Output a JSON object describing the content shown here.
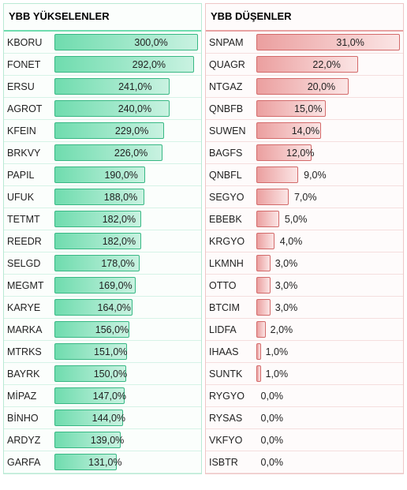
{
  "panels": [
    {
      "key": "gainers",
      "title": "YBB YÜKSELENLER",
      "header_border": "#6fdcae",
      "row_border": "#d6f3e7",
      "panel_bg": "#fbfefc",
      "panel_border": "#b9e9d4",
      "bar_fill": "linear-gradient(to right, #6fdcae, #c9f2e1)",
      "bar_border": "#38b884",
      "label_color": "#222222",
      "ticker_color": "#222222",
      "max_value": 300.0,
      "rows": [
        {
          "ticker": "KBORU",
          "value": 300.0,
          "label": "300,0%"
        },
        {
          "ticker": "FONET",
          "value": 292.0,
          "label": "292,0%"
        },
        {
          "ticker": "ERSU",
          "value": 241.0,
          "label": "241,0%"
        },
        {
          "ticker": "AGROT",
          "value": 240.0,
          "label": "240,0%"
        },
        {
          "ticker": "KFEIN",
          "value": 229.0,
          "label": "229,0%"
        },
        {
          "ticker": "BRKVY",
          "value": 226.0,
          "label": "226,0%"
        },
        {
          "ticker": "PAPIL",
          "value": 190.0,
          "label": "190,0%"
        },
        {
          "ticker": "UFUK",
          "value": 188.0,
          "label": "188,0%"
        },
        {
          "ticker": "TETMT",
          "value": 182.0,
          "label": "182,0%"
        },
        {
          "ticker": "REEDR",
          "value": 182.0,
          "label": "182,0%"
        },
        {
          "ticker": "SELGD",
          "value": 178.0,
          "label": "178,0%"
        },
        {
          "ticker": "MEGMT",
          "value": 169.0,
          "label": "169,0%"
        },
        {
          "ticker": "KARYE",
          "value": 164.0,
          "label": "164,0%"
        },
        {
          "ticker": "MARKA",
          "value": 156.0,
          "label": "156,0%"
        },
        {
          "ticker": "MTRKS",
          "value": 151.0,
          "label": "151,0%"
        },
        {
          "ticker": "BAYRK",
          "value": 150.0,
          "label": "150,0%"
        },
        {
          "ticker": "MİPAZ",
          "value": 147.0,
          "label": "147,0%"
        },
        {
          "ticker": "BİNHO",
          "value": 144.0,
          "label": "144,0%"
        },
        {
          "ticker": "ARDYZ",
          "value": 139.0,
          "label": "139,0%"
        },
        {
          "ticker": "GARFA",
          "value": 131.0,
          "label": "131,0%"
        }
      ]
    },
    {
      "key": "losers",
      "title": "YBB DÜŞENLER",
      "header_border": "#e8a1a1",
      "row_border": "#f5dede",
      "panel_bg": "#fefbfb",
      "panel_border": "#eec6c6",
      "bar_fill": "linear-gradient(to right, #eb9f9f, #fbe5e5)",
      "bar_border": "#d36a6a",
      "label_color": "#222222",
      "ticker_color": "#222222",
      "max_value": 31.0,
      "rows": [
        {
          "ticker": "SNPAM",
          "value": 31.0,
          "label": "31,0%"
        },
        {
          "ticker": "QUAGR",
          "value": 22.0,
          "label": "22,0%"
        },
        {
          "ticker": "NTGAZ",
          "value": 20.0,
          "label": "20,0%"
        },
        {
          "ticker": "QNBFB",
          "value": 15.0,
          "label": "15,0%"
        },
        {
          "ticker": "SUWEN",
          "value": 14.0,
          "label": "14,0%"
        },
        {
          "ticker": "BAGFS",
          "value": 12.0,
          "label": "12,0%"
        },
        {
          "ticker": "QNBFL",
          "value": 9.0,
          "label": "9,0%"
        },
        {
          "ticker": "SEGYO",
          "value": 7.0,
          "label": "7,0%"
        },
        {
          "ticker": "EBEBK",
          "value": 5.0,
          "label": "5,0%"
        },
        {
          "ticker": "KRGYO",
          "value": 4.0,
          "label": "4,0%"
        },
        {
          "ticker": "LKMNH",
          "value": 3.0,
          "label": "3,0%"
        },
        {
          "ticker": "OTTO",
          "value": 3.0,
          "label": "3,0%"
        },
        {
          "ticker": "BTCIM",
          "value": 3.0,
          "label": "3,0%"
        },
        {
          "ticker": "LIDFA",
          "value": 2.0,
          "label": "2,0%"
        },
        {
          "ticker": "IHAAS",
          "value": 1.0,
          "label": "1,0%"
        },
        {
          "ticker": "SUNTK",
          "value": 1.0,
          "label": "1,0%"
        },
        {
          "ticker": "RYGYO",
          "value": 0.0,
          "label": "0,0%"
        },
        {
          "ticker": "RYSAS",
          "value": 0.0,
          "label": "0,0%"
        },
        {
          "ticker": "VKFYO",
          "value": 0.0,
          "label": "0,0%"
        },
        {
          "ticker": "ISBTR",
          "value": 0.0,
          "label": "0,0%"
        }
      ]
    }
  ]
}
